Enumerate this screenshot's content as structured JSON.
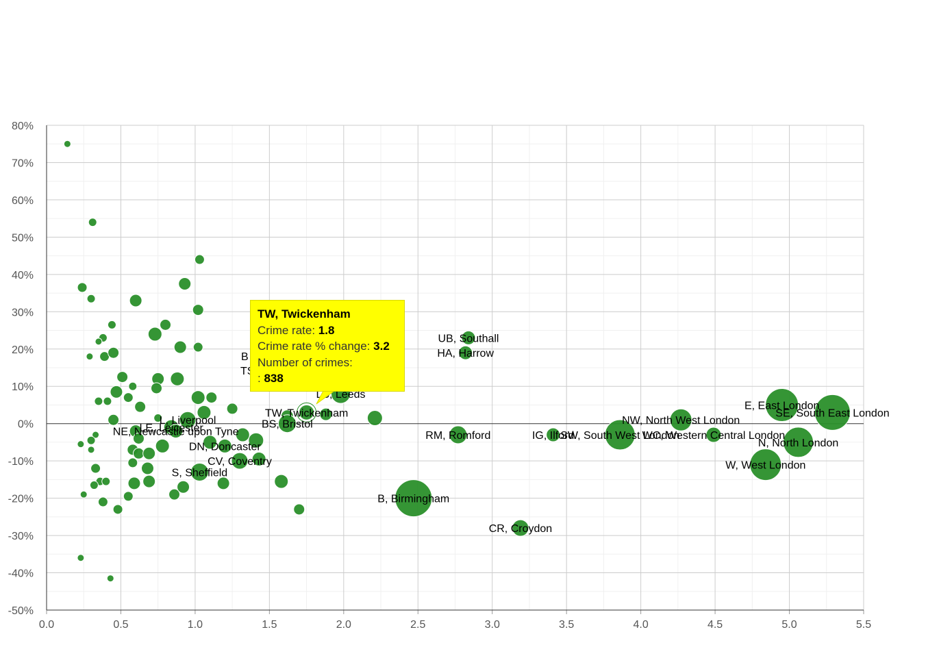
{
  "chart_data": {
    "type": "scatter",
    "xlim": [
      0,
      5.5
    ],
    "ylim": [
      -50,
      80
    ],
    "x_ticks": [
      "0.0",
      "0.5",
      "1.0",
      "1.5",
      "2.0",
      "2.5",
      "3.0",
      "3.5",
      "4.0",
      "4.5",
      "5.0",
      "5.5"
    ],
    "y_ticks": [
      "80%",
      "70%",
      "60%",
      "50%",
      "40%",
      "30%",
      "20%",
      "10%",
      "0%",
      "-10%",
      "-20%",
      "-30%",
      "-40%",
      "-50%"
    ],
    "grid": true,
    "bubble_color": "#2a8f2a",
    "tooltip_color": "#ffff00",
    "labeled_points": [
      {
        "label": "UB, Southall",
        "x": 2.84,
        "y": 23,
        "size": 10
      },
      {
        "label": "HA, Harrow",
        "x": 2.82,
        "y": 19,
        "size": 10
      },
      {
        "label": "E, East London",
        "x": 4.95,
        "y": 5,
        "size": 24
      },
      {
        "label": "SE, South East London",
        "x": 5.29,
        "y": 3,
        "size": 26
      },
      {
        "label": "NW, North West London",
        "x": 4.27,
        "y": 1,
        "size": 16
      },
      {
        "label": "WC, Western Central London",
        "x": 4.49,
        "y": -3,
        "size": 11
      },
      {
        "label": "N, North London",
        "x": 5.06,
        "y": -5,
        "size": 22
      },
      {
        "label": "W, West London",
        "x": 4.84,
        "y": -11,
        "size": 23
      },
      {
        "label": "SW, South West London",
        "x": 3.86,
        "y": -3,
        "size": 22
      },
      {
        "label": "IG, Ilford",
        "x": 3.41,
        "y": -3,
        "size": 10
      },
      {
        "label": "RM, Romford",
        "x": 2.77,
        "y": -3,
        "size": 13
      },
      {
        "label": "CR, Croydon",
        "x": 3.19,
        "y": -28,
        "size": 12
      },
      {
        "label": "B, Birmingham",
        "x": 2.47,
        "y": -20,
        "size": 27
      },
      {
        "label": "TW, Twickenham",
        "x": 1.75,
        "y": 3,
        "size": 11
      },
      {
        "label": "LS, Leeds",
        "x": 1.98,
        "y": 8,
        "size": 14
      },
      {
        "label": "BS, Bristol",
        "x": 1.62,
        "y": 0,
        "size": 13
      },
      {
        "label": "L, Liverpool",
        "x": 0.95,
        "y": 1,
        "size": 12
      },
      {
        "label": "LE, Leicester",
        "x": 0.84,
        "y": -1,
        "size": 11
      },
      {
        "label": "NE, Newcastle upon Tyne",
        "x": 0.87,
        "y": -2,
        "size": 10
      },
      {
        "label": "DN, Doncaster",
        "x": 1.2,
        "y": -6,
        "size": 10
      },
      {
        "label": "CV, Coventry",
        "x": 1.3,
        "y": -10,
        "size": 12
      },
      {
        "label": "S, Sheffield",
        "x": 1.03,
        "y": -13,
        "size": 13
      }
    ],
    "points": [
      {
        "x": 0.14,
        "y": 75,
        "size": 5
      },
      {
        "x": 0.31,
        "y": 54,
        "size": 6
      },
      {
        "x": 0.24,
        "y": 36.5,
        "size": 7
      },
      {
        "x": 0.3,
        "y": 33.5,
        "size": 6
      },
      {
        "x": 0.6,
        "y": 33,
        "size": 9
      },
      {
        "x": 0.44,
        "y": 26.5,
        "size": 6
      },
      {
        "x": 0.38,
        "y": 23,
        "size": 6
      },
      {
        "x": 0.35,
        "y": 22,
        "size": 5
      },
      {
        "x": 0.29,
        "y": 18,
        "size": 5
      },
      {
        "x": 0.39,
        "y": 18,
        "size": 7
      },
      {
        "x": 0.45,
        "y": 19,
        "size": 8
      },
      {
        "x": 0.73,
        "y": 24,
        "size": 10
      },
      {
        "x": 0.8,
        "y": 26.5,
        "size": 8
      },
      {
        "x": 0.93,
        "y": 37.5,
        "size": 9
      },
      {
        "x": 1.03,
        "y": 44,
        "size": 7
      },
      {
        "x": 1.02,
        "y": 30.5,
        "size": 8
      },
      {
        "x": 0.9,
        "y": 20.5,
        "size": 9
      },
      {
        "x": 1.02,
        "y": 20.5,
        "size": 7
      },
      {
        "x": 0.88,
        "y": 12,
        "size": 10
      },
      {
        "x": 0.75,
        "y": 12,
        "size": 9
      },
      {
        "x": 0.74,
        "y": 9.5,
        "size": 8
      },
      {
        "x": 0.51,
        "y": 12.5,
        "size": 8
      },
      {
        "x": 0.58,
        "y": 10,
        "size": 6
      },
      {
        "x": 0.47,
        "y": 8.5,
        "size": 9
      },
      {
        "x": 0.35,
        "y": 6,
        "size": 6
      },
      {
        "x": 0.41,
        "y": 6,
        "size": 6
      },
      {
        "x": 0.55,
        "y": 7,
        "size": 7
      },
      {
        "x": 0.63,
        "y": 4.5,
        "size": 8
      },
      {
        "x": 0.45,
        "y": 1,
        "size": 8
      },
      {
        "x": 0.75,
        "y": 1.5,
        "size": 6
      },
      {
        "x": 1.02,
        "y": 7,
        "size": 10
      },
      {
        "x": 1.11,
        "y": 7,
        "size": 8
      },
      {
        "x": 1.25,
        "y": 4,
        "size": 8
      },
      {
        "x": 1.06,
        "y": 3,
        "size": 10
      },
      {
        "x": 0.6,
        "y": -2,
        "size": 9
      },
      {
        "x": 0.62,
        "y": -4,
        "size": 8
      },
      {
        "x": 0.33,
        "y": -3,
        "size": 5
      },
      {
        "x": 0.3,
        "y": -4.5,
        "size": 6
      },
      {
        "x": 0.23,
        "y": -5.5,
        "size": 5
      },
      {
        "x": 0.3,
        "y": -7,
        "size": 5
      },
      {
        "x": 0.58,
        "y": -7,
        "size": 8
      },
      {
        "x": 0.62,
        "y": -8,
        "size": 8
      },
      {
        "x": 0.69,
        "y": -8,
        "size": 9
      },
      {
        "x": 0.78,
        "y": -6,
        "size": 10
      },
      {
        "x": 0.58,
        "y": -10.5,
        "size": 7
      },
      {
        "x": 0.68,
        "y": -12,
        "size": 9
      },
      {
        "x": 0.33,
        "y": -12,
        "size": 7
      },
      {
        "x": 0.36,
        "y": -15.5,
        "size": 6
      },
      {
        "x": 0.4,
        "y": -15.5,
        "size": 6
      },
      {
        "x": 0.32,
        "y": -16.5,
        "size": 6
      },
      {
        "x": 0.59,
        "y": -16,
        "size": 9
      },
      {
        "x": 0.69,
        "y": -15.5,
        "size": 9
      },
      {
        "x": 0.25,
        "y": -19,
        "size": 5
      },
      {
        "x": 0.55,
        "y": -19.5,
        "size": 7
      },
      {
        "x": 0.38,
        "y": -21,
        "size": 7
      },
      {
        "x": 0.48,
        "y": -23,
        "size": 7
      },
      {
        "x": 0.86,
        "y": -19,
        "size": 8
      },
      {
        "x": 0.92,
        "y": -17,
        "size": 9
      },
      {
        "x": 1.19,
        "y": -16,
        "size": 9
      },
      {
        "x": 1.1,
        "y": -5,
        "size": 10
      },
      {
        "x": 1.32,
        "y": -3,
        "size": 10
      },
      {
        "x": 1.41,
        "y": -4.5,
        "size": 11
      },
      {
        "x": 1.43,
        "y": -9.5,
        "size": 10
      },
      {
        "x": 1.58,
        "y": -15.5,
        "size": 10
      },
      {
        "x": 1.7,
        "y": -23,
        "size": 8
      },
      {
        "x": 1.88,
        "y": 2.5,
        "size": 9
      },
      {
        "x": 2.21,
        "y": 1.5,
        "size": 11
      },
      {
        "x": 1.62,
        "y": 2,
        "size": 9
      },
      {
        "x": 0.23,
        "y": -36,
        "size": 5
      },
      {
        "x": 0.43,
        "y": -41.5,
        "size": 5
      }
    ],
    "tooltip": {
      "title": "TW, Twickenham",
      "rate_label": "Crime rate: ",
      "rate_value": "1.8",
      "change_label": "Crime rate % change: ",
      "change_value": "3.2",
      "count_label": "Number of crimes:",
      "count_prefix": ": ",
      "count_value": "838"
    },
    "partial_labels": [
      "B",
      "TS"
    ]
  }
}
